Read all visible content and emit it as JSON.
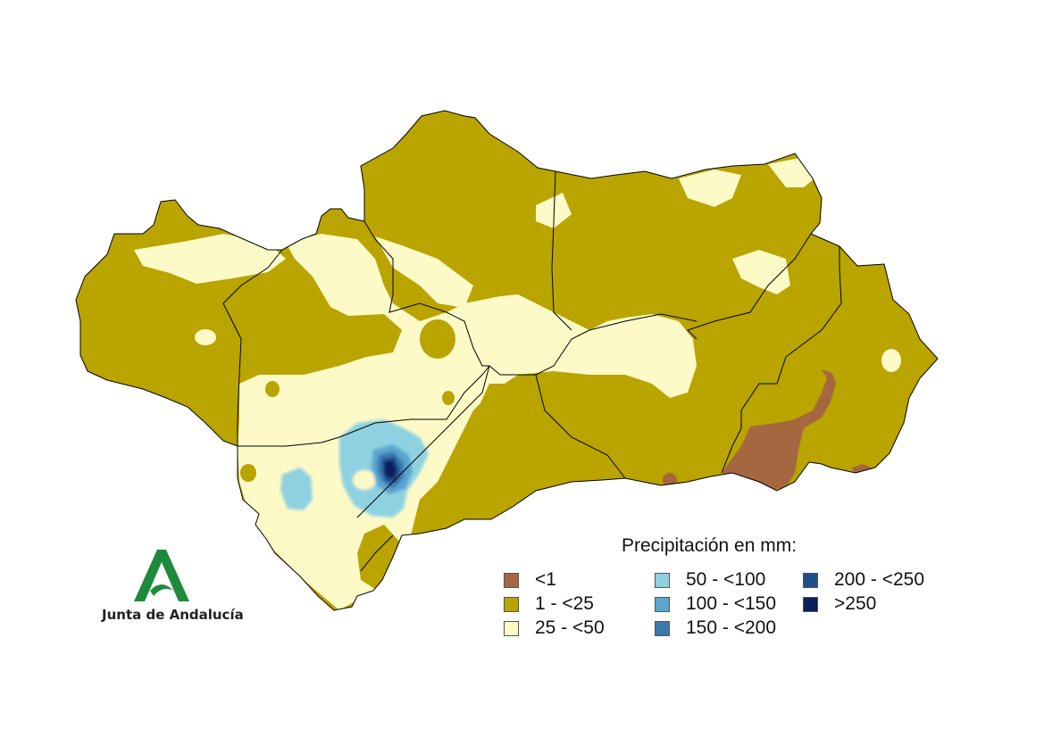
{
  "legend": {
    "title": "Precipitación en mm:",
    "items": [
      {
        "label": "<1",
        "color": "#a5673f"
      },
      {
        "label": "1 - <25",
        "color": "#b9a400"
      },
      {
        "label": "25 - <50",
        "color": "#fdfac8"
      },
      {
        "label": "50 - <100",
        "color": "#8ed1e0"
      },
      {
        "label": "100 - <150",
        "color": "#5aa6cf"
      },
      {
        "label": "150 - <200",
        "color": "#3a79ad"
      },
      {
        "label": "200 - <250",
        "color": "#1f4e8c"
      },
      {
        "label": ">250",
        "color": "#0b1f5c"
      }
    ]
  },
  "logo": {
    "text": "Junta de Andalucía",
    "color": "#1e8a3c"
  },
  "map_colors": {
    "border": "#000000",
    "background": "#ffffff"
  }
}
